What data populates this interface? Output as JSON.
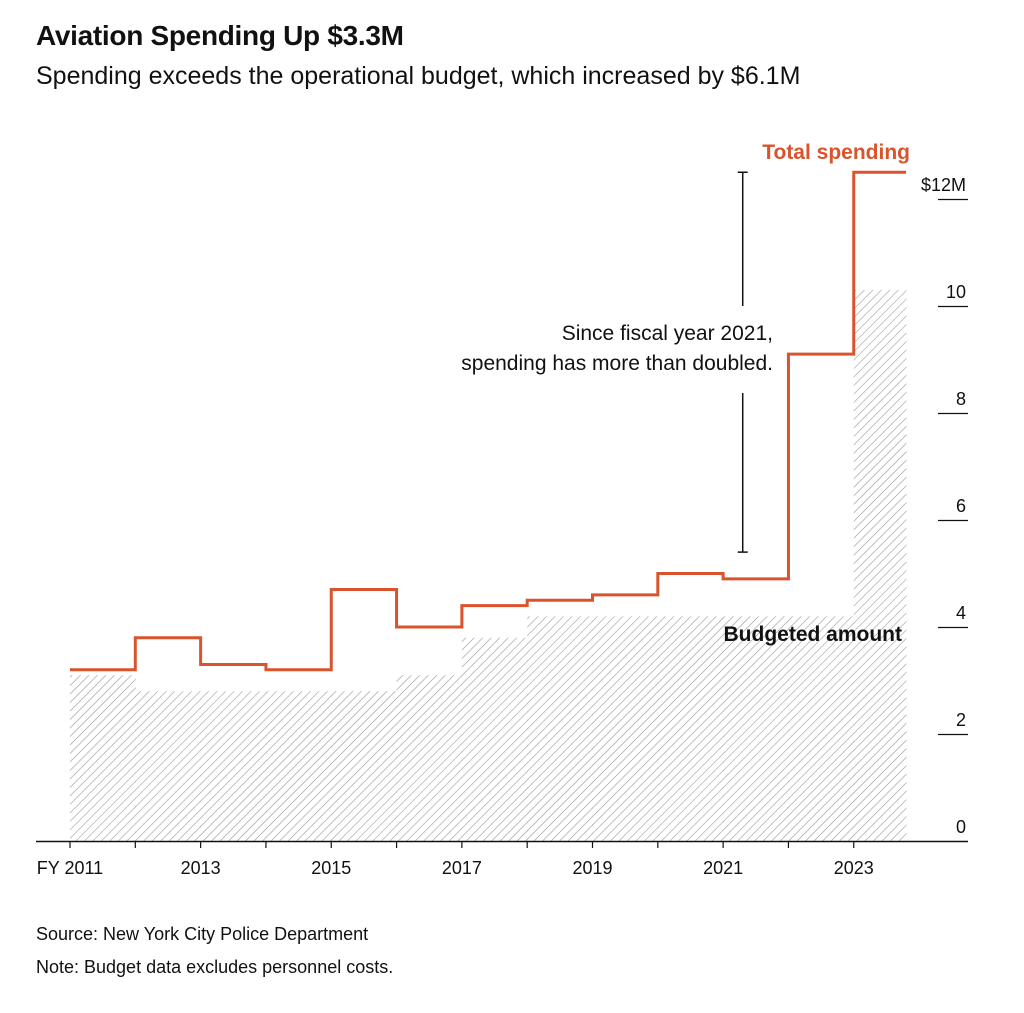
{
  "header": {
    "title": "Aviation Spending Up $3.3M",
    "subtitle": "Spending exceeds the operational budget, which increased by $6.1M"
  },
  "footer": {
    "source": "Source: New York City Police Department",
    "note": "Note: Budget data excludes personnel costs."
  },
  "colors": {
    "spending": "#d9542c",
    "budget_hatch": "#9a9a9a",
    "axis": "#111111"
  },
  "chart_data": {
    "type": "area",
    "x_tick_labels": [
      "FY 2011",
      "2013",
      "2015",
      "2017",
      "2019",
      "2021",
      "2023"
    ],
    "x_tick_years": [
      2011,
      2013,
      2015,
      2017,
      2019,
      2021,
      2023
    ],
    "xlim": [
      2011,
      2023.8
    ],
    "ylim": [
      0,
      12
    ],
    "y_ticks": [
      0,
      2,
      4,
      6,
      8,
      10,
      12
    ],
    "y_tick_labels": [
      "0",
      "2",
      "4",
      "6",
      "8",
      "10",
      "$12M"
    ],
    "series": [
      {
        "name": "Total spending",
        "style": "step-line",
        "x": [
          2011,
          2012,
          2013,
          2014,
          2015,
          2016,
          2017,
          2018,
          2019,
          2020,
          2021,
          2022,
          2023
        ],
        "values": [
          3.2,
          3.8,
          3.3,
          3.2,
          4.7,
          4.0,
          4.4,
          4.5,
          4.6,
          5.0,
          4.9,
          9.1,
          12.5
        ]
      },
      {
        "name": "Budgeted amount",
        "style": "hatched-step-area",
        "x": [
          2011,
          2012,
          2013,
          2014,
          2015,
          2016,
          2017,
          2018,
          2019,
          2020,
          2021,
          2022,
          2023
        ],
        "values": [
          3.1,
          2.8,
          2.8,
          2.8,
          2.8,
          3.1,
          3.8,
          4.2,
          4.2,
          4.2,
          4.2,
          4.2,
          10.3
        ]
      }
    ],
    "annotation": {
      "lines": [
        "Since fiscal year 2021,",
        "spending has more than doubled."
      ],
      "x": 2021.3,
      "y_from": 5.4,
      "y_to": 12.5
    },
    "grid": false,
    "legend": "inline labels"
  }
}
